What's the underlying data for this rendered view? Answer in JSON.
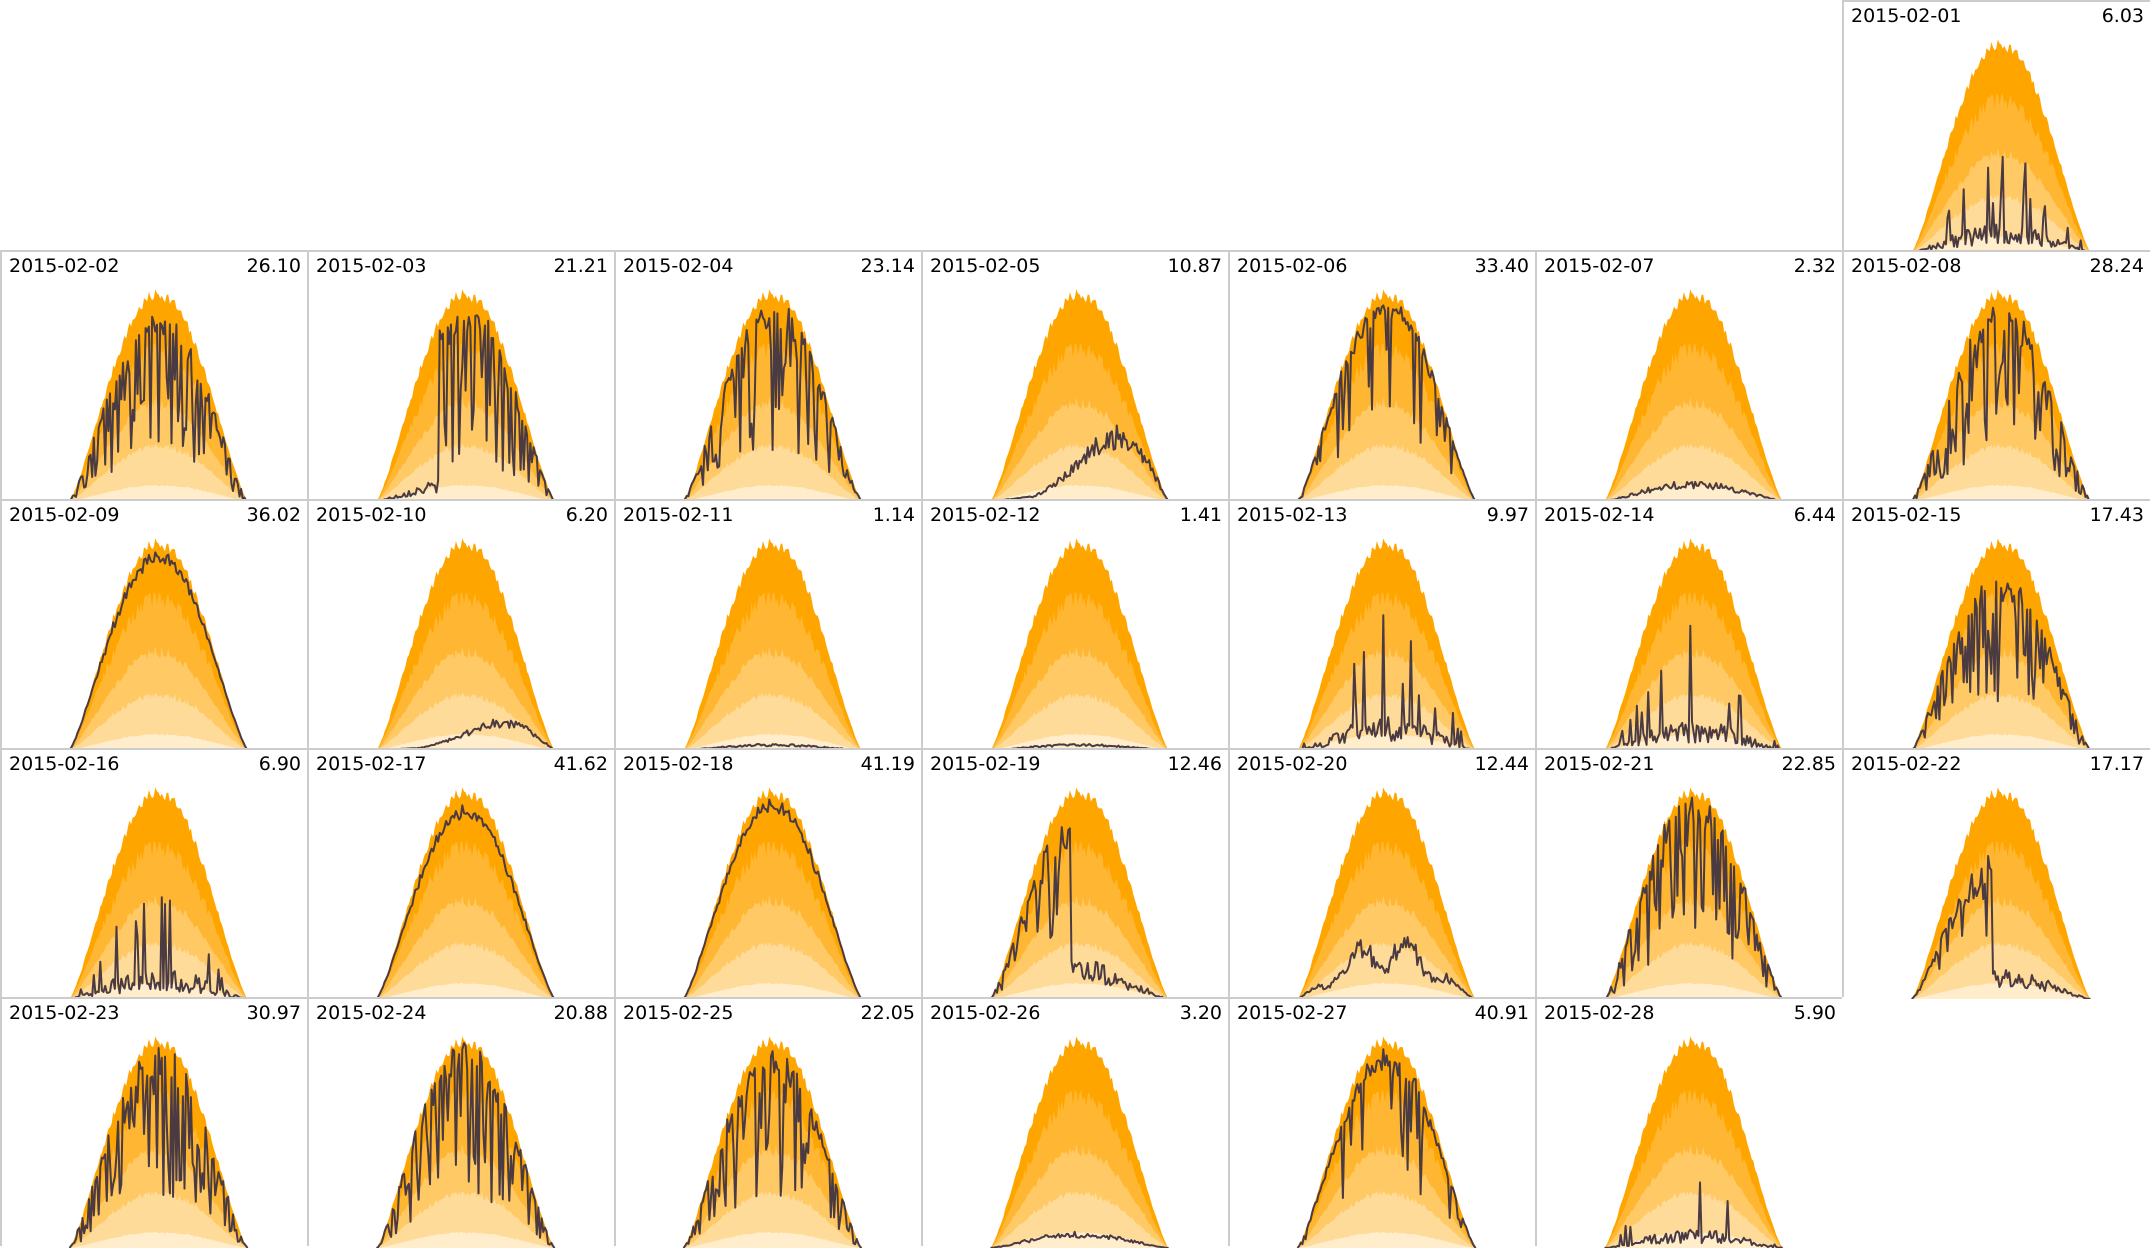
{
  "chart_data": {
    "type": "area",
    "layout": "calendar-grid",
    "columns": 7,
    "month": "2015-02",
    "first_weekday_column": 6,
    "days": [
      {
        "date": "2015-02-01",
        "value": "6.03",
        "profile": "cloudy-spikes",
        "scale": 0.58
      },
      {
        "date": "2015-02-02",
        "value": "26.10",
        "profile": "broken-high",
        "scale": 0.92
      },
      {
        "date": "2015-02-03",
        "value": "21.21",
        "profile": "late-jump",
        "scale": 0.95
      },
      {
        "date": "2015-02-04",
        "value": "23.14",
        "profile": "broken-high",
        "scale": 0.97
      },
      {
        "date": "2015-02-05",
        "value": "10.87",
        "profile": "rising-late",
        "scale": 0.78
      },
      {
        "date": "2015-02-06",
        "value": "33.40",
        "profile": "mostly-clear",
        "scale": 0.97
      },
      {
        "date": "2015-02-07",
        "value": "2.32",
        "profile": "overcast-low",
        "scale": 0.1
      },
      {
        "date": "2015-02-08",
        "value": "28.24",
        "profile": "broken-high",
        "scale": 0.95
      },
      {
        "date": "2015-02-09",
        "value": "36.02",
        "profile": "clear",
        "scale": 0.95
      },
      {
        "date": "2015-02-10",
        "value": "6.20",
        "profile": "rising-late",
        "scale": 0.33
      },
      {
        "date": "2015-02-11",
        "value": "1.14",
        "profile": "overcast-low",
        "scale": 0.03
      },
      {
        "date": "2015-02-12",
        "value": "1.41",
        "profile": "overcast-low",
        "scale": 0.03
      },
      {
        "date": "2015-02-13",
        "value": "9.97",
        "profile": "cloudy-spikes",
        "scale": 0.68
      },
      {
        "date": "2015-02-14",
        "value": "6.44",
        "profile": "cloudy-spikes",
        "scale": 0.6
      },
      {
        "date": "2015-02-15",
        "value": "17.43",
        "profile": "broken-high",
        "scale": 0.86
      },
      {
        "date": "2015-02-16",
        "value": "6.90",
        "profile": "cloudy-spikes",
        "scale": 0.63
      },
      {
        "date": "2015-02-17",
        "value": "41.62",
        "profile": "clear",
        "scale": 0.92
      },
      {
        "date": "2015-02-18",
        "value": "41.19",
        "profile": "clear",
        "scale": 0.95
      },
      {
        "date": "2015-02-19",
        "value": "12.46",
        "profile": "morning-burst",
        "scale": 0.95
      },
      {
        "date": "2015-02-20",
        "value": "12.44",
        "profile": "moderate-wavy",
        "scale": 0.4
      },
      {
        "date": "2015-02-21",
        "value": "22.85",
        "profile": "broken-high",
        "scale": 0.99
      },
      {
        "date": "2015-02-22",
        "value": "17.17",
        "profile": "morning-burst",
        "scale": 0.72
      },
      {
        "date": "2015-02-23",
        "value": "30.97",
        "profile": "broken-high",
        "scale": 0.97
      },
      {
        "date": "2015-02-24",
        "value": "20.88",
        "profile": "broken-high",
        "scale": 0.99
      },
      {
        "date": "2015-02-25",
        "value": "22.05",
        "profile": "broken-high",
        "scale": 0.97
      },
      {
        "date": "2015-02-26",
        "value": "3.20",
        "profile": "overcast-low",
        "scale": 0.08
      },
      {
        "date": "2015-02-27",
        "value": "40.91",
        "profile": "mostly-clear",
        "scale": 0.95
      },
      {
        "date": "2015-02-28",
        "value": "5.90",
        "profile": "cloudy-spikes",
        "scale": 0.38
      }
    ],
    "colors": {
      "band_max": "#ffa500",
      "band_q90": "#ffb733",
      "band_q75": "#ffca66",
      "band_q50": "#ffdb99",
      "band_min": "#ffedcc",
      "line": "#4a3a42",
      "cell_border": "#cccccc"
    },
    "grid": false,
    "legend": "none"
  }
}
